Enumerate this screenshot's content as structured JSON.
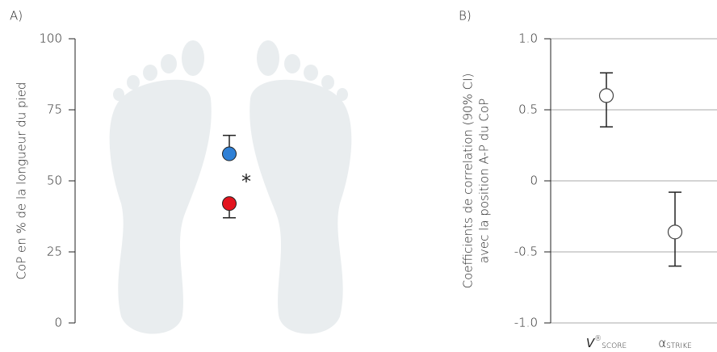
{
  "chart_data": [
    {
      "type": "dot",
      "panel_label": "A)",
      "ylabel": "CoP en % de la longueur du pied",
      "values": [
        59.5,
        42
      ],
      "colors": [
        "#2f80d6",
        "#e3141e"
      ],
      "error_high": [
        66,
        null
      ],
      "error_low": [
        null,
        37
      ],
      "annotation": "*",
      "ylim": [
        0,
        100
      ],
      "yticks": [
        0,
        25,
        50,
        75,
        100
      ],
      "grid": false
    },
    {
      "type": "errorbar",
      "panel_label": "B)",
      "ylabel": [
        "Coefficients de correlation (90% CI)",
        "avec la position A-P du CoP"
      ],
      "categories": [
        "V",
        "α"
      ],
      "category_superscripts": [
        "®",
        null
      ],
      "category_subscripts": [
        "SCORE",
        "STRIKE"
      ],
      "values": [
        0.6,
        -0.36
      ],
      "error_low": [
        0.38,
        -0.6
      ],
      "error_high": [
        0.76,
        -0.08
      ],
      "color": "#ffffff",
      "ylim": [
        -1,
        1
      ],
      "yticks": [
        {
          "value": -1,
          "label": "-1.0"
        },
        -0.5,
        0,
        0.5,
        {
          "value": 1,
          "label": "1.0"
        }
      ],
      "grid": true
    }
  ]
}
